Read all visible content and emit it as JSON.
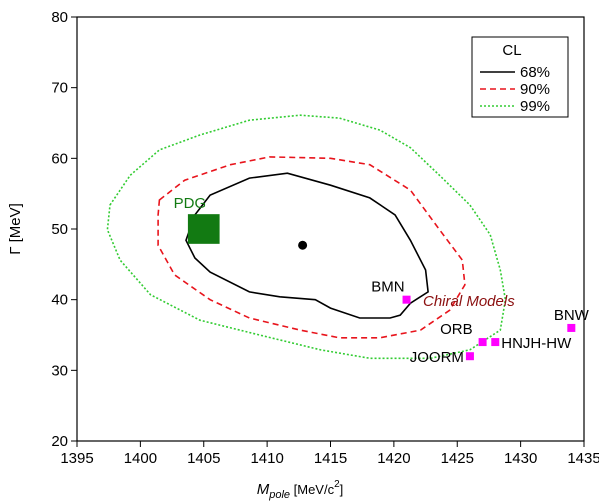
{
  "chart_data": {
    "type": "contour",
    "xlabel": [
      "M",
      "pole",
      " [MeV/c",
      "2",
      "]"
    ],
    "ylabel": "Γ [MeV]",
    "xlim": [
      1395,
      1435
    ],
    "xticks": [
      1395,
      1400,
      1405,
      1410,
      1415,
      1420,
      1425,
      1430,
      1435
    ],
    "ylim": [
      20,
      80
    ],
    "yticks": [
      20,
      30,
      40,
      50,
      60,
      70,
      80
    ],
    "legend_title": "CL",
    "legend_position": "upper right",
    "series": [
      {
        "name": "68%",
        "color": "#000000",
        "style": "solid",
        "x": [
          1403.6,
          1404.3,
          1405.5,
          1408.6,
          1411.6,
          1415.0,
          1418.1,
          1420.1,
          1421.3,
          1422.5,
          1422.7,
          1421.9,
          1421.3,
          1420.5,
          1419.7,
          1417.3,
          1415.0,
          1413.8,
          1411.0,
          1408.6,
          1405.5,
          1404.3
        ],
        "y": [
          48.4,
          52.0,
          54.8,
          57.2,
          57.9,
          56.2,
          54.4,
          52.0,
          48.4,
          44.2,
          41.1,
          40.2,
          39.5,
          37.8,
          37.4,
          37.4,
          38.8,
          40.0,
          40.4,
          41.1,
          43.9,
          45.9
        ]
      },
      {
        "name": "90%",
        "color": "#e8141c",
        "style": "dashed",
        "x": [
          1401.5,
          1403.5,
          1407.1,
          1410.2,
          1415.0,
          1418.1,
          1421.3,
          1423.6,
          1425.4,
          1425.6,
          1424.4,
          1422.1,
          1418.9,
          1415.7,
          1412.6,
          1408.6,
          1405.5,
          1402.7,
          1401.4,
          1401.4
        ],
        "y": [
          54.1,
          56.9,
          59.1,
          60.2,
          60.0,
          59.1,
          55.5,
          49.9,
          45.6,
          42.1,
          38.5,
          35.7,
          34.6,
          34.6,
          35.7,
          37.4,
          40.0,
          43.5,
          47.7,
          52.0
        ]
      },
      {
        "name": "99%",
        "color": "#33cc33",
        "style": "dotted",
        "x": [
          1397.6,
          1399.2,
          1401.5,
          1404.7,
          1408.6,
          1412.6,
          1415.7,
          1418.9,
          1421.3,
          1423.6,
          1426.0,
          1427.6,
          1428.4,
          1428.8,
          1428.4,
          1426.0,
          1422.9,
          1418.1,
          1414.2,
          1409.4,
          1404.7,
          1400.8,
          1398.4,
          1397.4
        ],
        "y": [
          53.4,
          57.6,
          61.2,
          63.3,
          65.4,
          66.1,
          65.7,
          64.0,
          61.5,
          57.6,
          53.4,
          49.2,
          44.2,
          40.0,
          35.7,
          32.9,
          31.7,
          31.7,
          32.9,
          35.0,
          37.1,
          40.7,
          45.6,
          49.9
        ]
      }
    ],
    "center": {
      "x": 1412.8,
      "y": 47.7,
      "color": "#000000"
    },
    "pdg": {
      "label": "PDG",
      "x": 1405,
      "y": 50,
      "xerr": 1.25,
      "yerr": 2.1,
      "color": "#127a12"
    },
    "points_color": "#ff00ff",
    "points": [
      {
        "label": "BMN",
        "x": 1421,
        "y": 40
      },
      {
        "label": "ORB",
        "x": 1427,
        "y": 34
      },
      {
        "label": "HNJH-HW",
        "x": 1428,
        "y": 34
      },
      {
        "label": "JOORM",
        "x": 1426,
        "y": 32
      },
      {
        "label": "BNW",
        "x": 1434,
        "y": 36
      }
    ],
    "annotation": {
      "text": "Chiral Models",
      "color": "#8b1010"
    }
  }
}
